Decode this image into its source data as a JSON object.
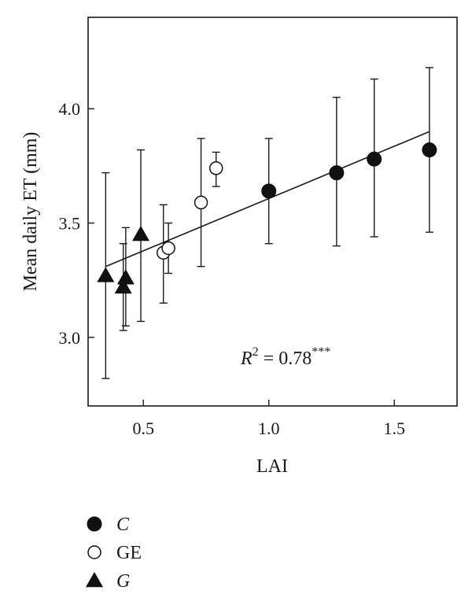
{
  "chart_data": {
    "type": "scatter",
    "xlabel": "LAI",
    "ylabel": "Mean daily ET (mm)",
    "xlim": [
      0.28,
      1.75
    ],
    "ylim": [
      2.7,
      4.4
    ],
    "xticks": [
      0.5,
      1.0,
      1.5
    ],
    "xtick_labels": [
      "0.5",
      "1.0",
      "1.5"
    ],
    "yticks": [
      3.0,
      3.5,
      4.0
    ],
    "ytick_labels": [
      "3.0",
      "3.5",
      "4.0"
    ],
    "annotation": {
      "r_symbol": "R",
      "r_sup": "2",
      "text": " = 0.78",
      "sig": "***"
    },
    "trendline": {
      "x": [
        0.35,
        1.64
      ],
      "y": [
        3.31,
        3.9
      ]
    },
    "series": [
      {
        "name": "C",
        "marker": "filled-circle",
        "points": [
          {
            "x": 1.0,
            "y": 3.64,
            "ylow": 3.41,
            "yhigh": 3.87
          },
          {
            "x": 1.27,
            "y": 3.72,
            "ylow": 3.4,
            "yhigh": 4.05
          },
          {
            "x": 1.42,
            "y": 3.78,
            "ylow": 3.44,
            "yhigh": 4.13
          },
          {
            "x": 1.64,
            "y": 3.82,
            "ylow": 3.46,
            "yhigh": 4.18
          }
        ]
      },
      {
        "name": "GE",
        "marker": "open-circle",
        "points": [
          {
            "x": 0.58,
            "y": 3.37,
            "ylow": 3.15,
            "yhigh": 3.58
          },
          {
            "x": 0.6,
            "y": 3.39,
            "ylow": 3.28,
            "yhigh": 3.5
          },
          {
            "x": 0.73,
            "y": 3.59,
            "ylow": 3.31,
            "yhigh": 3.87
          },
          {
            "x": 0.79,
            "y": 3.74,
            "ylow": 3.66,
            "yhigh": 3.81
          }
        ]
      },
      {
        "name": "G",
        "marker": "filled-triangle",
        "points": [
          {
            "x": 0.35,
            "y": 3.27,
            "ylow": 2.82,
            "yhigh": 3.72
          },
          {
            "x": 0.42,
            "y": 3.22,
            "ylow": 3.03,
            "yhigh": 3.41
          },
          {
            "x": 0.43,
            "y": 3.26,
            "ylow": 3.05,
            "yhigh": 3.48
          },
          {
            "x": 0.49,
            "y": 3.45,
            "ylow": 3.07,
            "yhigh": 3.82
          }
        ]
      }
    ],
    "legend": {
      "position": "bottom-left",
      "entries": [
        {
          "marker": "filled-circle",
          "label": "C",
          "italic": true
        },
        {
          "marker": "open-circle",
          "label": "GE",
          "italic": false
        },
        {
          "marker": "filled-triangle",
          "label": "G",
          "italic": true
        }
      ]
    }
  }
}
